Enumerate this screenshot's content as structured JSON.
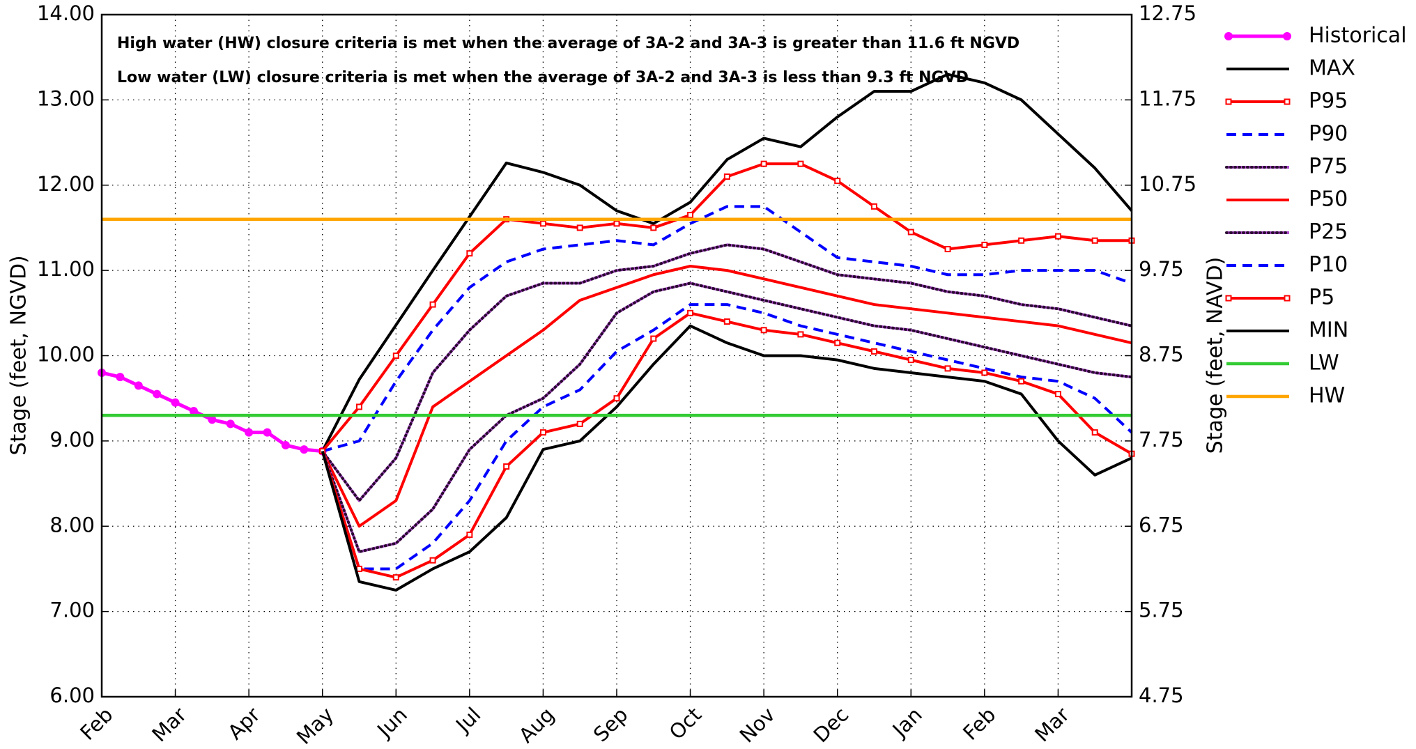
{
  "chart_data": {
    "type": "line",
    "annotations": [
      "High water (HW) closure criteria is met when the average of 3A-2 and 3A-3 is greater than 11.6 ft NGVD",
      "Low water (LW) closure criteria is met when the average of 3A-2 and 3A-3 is less than 9.3 ft NGVD"
    ],
    "ylabel": "Stage (feet, NGVD)",
    "y2label": "Stage (feet, NAVD)",
    "xlim": [
      0,
      14
    ],
    "xticks": [
      {
        "value": 0,
        "label": "Feb"
      },
      {
        "value": 1,
        "label": "Mar"
      },
      {
        "value": 2,
        "label": "Apr"
      },
      {
        "value": 3,
        "label": "May"
      },
      {
        "value": 4,
        "label": "Jun"
      },
      {
        "value": 5,
        "label": "Jul"
      },
      {
        "value": 6,
        "label": "Aug"
      },
      {
        "value": 7,
        "label": "Sep"
      },
      {
        "value": 8,
        "label": "Oct"
      },
      {
        "value": 9,
        "label": "Nov"
      },
      {
        "value": 10,
        "label": "Dec"
      },
      {
        "value": 11,
        "label": "Jan"
      },
      {
        "value": 12,
        "label": "Feb"
      },
      {
        "value": 13,
        "label": "Mar"
      }
    ],
    "ylim": [
      6,
      14
    ],
    "yticks": [
      {
        "value": 6,
        "label": "6.00"
      },
      {
        "value": 7,
        "label": "7.00"
      },
      {
        "value": 8,
        "label": "8.00"
      },
      {
        "value": 9,
        "label": "9.00"
      },
      {
        "value": 10,
        "label": "10.00"
      },
      {
        "value": 11,
        "label": "11.00"
      },
      {
        "value": 12,
        "label": "12.00"
      },
      {
        "value": 13,
        "label": "13.00"
      },
      {
        "value": 14,
        "label": "14.00"
      }
    ],
    "y2lim": [
      4.75,
      12.75
    ],
    "y2ticks": [
      4.75,
      5.75,
      6.75,
      7.75,
      8.75,
      9.75,
      10.75,
      11.75,
      12.75
    ],
    "grid": true,
    "legend": "outside right",
    "series": [
      {
        "name": "Historical",
        "color": "#ff00ff",
        "style": "dots",
        "x": [
          0,
          0.25,
          0.5,
          0.75,
          1,
          1.25,
          1.5,
          1.75,
          2,
          2.25,
          2.5,
          2.75,
          3
        ],
        "values": [
          9.8,
          9.75,
          9.65,
          9.55,
          9.45,
          9.35,
          9.25,
          9.2,
          9.1,
          9.1,
          8.95,
          8.9,
          8.88
        ]
      },
      {
        "name": "MAX",
        "color": "#000000",
        "style": "solid",
        "x": [
          3,
          3.5,
          4,
          4.5,
          5,
          5.5,
          6,
          6.5,
          7,
          7.5,
          8,
          8.5,
          9,
          9.5,
          10,
          10.5,
          11,
          11.5,
          12,
          12.5,
          13,
          13.5,
          14
        ],
        "values": [
          8.88,
          9.72,
          10.36,
          11.0,
          11.63,
          12.26,
          12.15,
          12.0,
          11.7,
          11.55,
          11.8,
          12.3,
          12.55,
          12.45,
          12.8,
          13.1,
          13.1,
          13.3,
          13.2,
          13.0,
          12.6,
          12.2,
          11.7
        ]
      },
      {
        "name": "P95",
        "color": "#ff0000",
        "style": "squares",
        "x": [
          3,
          3.5,
          4,
          4.5,
          5,
          5.5,
          6,
          6.5,
          7,
          7.5,
          8,
          8.5,
          9,
          9.5,
          10,
          10.5,
          11,
          11.5,
          12,
          12.5,
          13,
          13.5,
          14
        ],
        "values": [
          8.88,
          9.4,
          10.0,
          10.6,
          11.2,
          11.6,
          11.55,
          11.5,
          11.55,
          11.5,
          11.65,
          12.1,
          12.25,
          12.25,
          12.05,
          11.75,
          11.45,
          11.25,
          11.3,
          11.35,
          11.4,
          11.35,
          11.35
        ]
      },
      {
        "name": "P90",
        "color": "#0000ff",
        "style": "dashed",
        "x": [
          3,
          3.5,
          4,
          4.5,
          5,
          5.5,
          6,
          6.5,
          7,
          7.5,
          8,
          8.5,
          9,
          9.5,
          10,
          10.5,
          11,
          11.5,
          12,
          12.5,
          13,
          13.5,
          14
        ],
        "values": [
          8.88,
          9.0,
          9.7,
          10.3,
          10.8,
          11.1,
          11.25,
          11.3,
          11.35,
          11.3,
          11.55,
          11.75,
          11.75,
          11.45,
          11.15,
          11.1,
          11.05,
          10.95,
          10.95,
          11.0,
          11.0,
          11.0,
          10.85
        ]
      },
      {
        "name": "P75",
        "color": "#b04fd0",
        "style": "dotted",
        "x": [
          3,
          3.5,
          4,
          4.5,
          5,
          5.5,
          6,
          6.5,
          7,
          7.5,
          8,
          8.5,
          9,
          9.5,
          10,
          10.5,
          11,
          11.5,
          12,
          12.5,
          13,
          13.5,
          14
        ],
        "values": [
          8.88,
          8.3,
          8.8,
          9.8,
          10.3,
          10.7,
          10.85,
          10.85,
          11.0,
          11.05,
          11.2,
          11.3,
          11.25,
          11.1,
          10.95,
          10.9,
          10.85,
          10.75,
          10.7,
          10.6,
          10.55,
          10.45,
          10.35
        ]
      },
      {
        "name": "P50",
        "color": "#ff0000",
        "style": "solid",
        "x": [
          3,
          3.5,
          4,
          4.5,
          5,
          5.5,
          6,
          6.5,
          7,
          7.5,
          8,
          8.5,
          9,
          9.5,
          10,
          10.5,
          11,
          11.5,
          12,
          12.5,
          13,
          13.5,
          14
        ],
        "values": [
          8.88,
          8.0,
          8.3,
          9.4,
          9.7,
          10.0,
          10.3,
          10.65,
          10.8,
          10.95,
          11.05,
          11.0,
          10.9,
          10.8,
          10.7,
          10.6,
          10.55,
          10.5,
          10.45,
          10.4,
          10.35,
          10.25,
          10.15
        ]
      },
      {
        "name": "P25",
        "color": "#b04fd0",
        "style": "dotted",
        "x": [
          3,
          3.5,
          4,
          4.5,
          5,
          5.5,
          6,
          6.5,
          7,
          7.5,
          8,
          8.5,
          9,
          9.5,
          10,
          10.5,
          11,
          11.5,
          12,
          12.5,
          13,
          13.5,
          14
        ],
        "values": [
          8.88,
          7.7,
          7.8,
          8.2,
          8.9,
          9.3,
          9.5,
          9.9,
          10.5,
          10.75,
          10.85,
          10.75,
          10.65,
          10.55,
          10.45,
          10.35,
          10.3,
          10.2,
          10.1,
          10.0,
          9.9,
          9.8,
          9.75
        ]
      },
      {
        "name": "P10",
        "color": "#0000ff",
        "style": "dashed",
        "x": [
          3,
          3.5,
          4,
          4.5,
          5,
          5.5,
          6,
          6.5,
          7,
          7.5,
          8,
          8.5,
          9,
          9.5,
          10,
          10.5,
          11,
          11.5,
          12,
          12.5,
          13,
          13.5,
          14
        ],
        "values": [
          8.88,
          7.5,
          7.5,
          7.8,
          8.3,
          9.0,
          9.4,
          9.6,
          10.05,
          10.3,
          10.6,
          10.6,
          10.5,
          10.35,
          10.25,
          10.15,
          10.05,
          9.95,
          9.85,
          9.75,
          9.7,
          9.5,
          9.1
        ]
      },
      {
        "name": "P5",
        "color": "#ff0000",
        "style": "squares",
        "x": [
          3,
          3.5,
          4,
          4.5,
          5,
          5.5,
          6,
          6.5,
          7,
          7.5,
          8,
          8.5,
          9,
          9.5,
          10,
          10.5,
          11,
          11.5,
          12,
          12.5,
          13,
          13.5,
          14
        ],
        "values": [
          8.88,
          7.5,
          7.4,
          7.6,
          7.9,
          8.7,
          9.1,
          9.2,
          9.5,
          10.2,
          10.5,
          10.4,
          10.3,
          10.25,
          10.15,
          10.05,
          9.95,
          9.85,
          9.8,
          9.7,
          9.55,
          9.1,
          8.85
        ]
      },
      {
        "name": "MIN",
        "color": "#000000",
        "style": "solid",
        "x": [
          3,
          3.5,
          4,
          4.5,
          5,
          5.5,
          6,
          6.5,
          7,
          7.5,
          8,
          8.5,
          9,
          9.5,
          10,
          10.5,
          11,
          11.5,
          12,
          12.5,
          13,
          13.5,
          14
        ],
        "values": [
          8.88,
          7.35,
          7.25,
          7.5,
          7.7,
          8.1,
          8.9,
          9.0,
          9.4,
          9.9,
          10.35,
          10.15,
          10.0,
          10.0,
          9.95,
          9.85,
          9.8,
          9.75,
          9.7,
          9.55,
          9.0,
          8.6,
          8.8
        ]
      },
      {
        "name": "LW",
        "color": "#33cc33",
        "style": "hline",
        "value": 9.3
      },
      {
        "name": "HW",
        "color": "#ffa500",
        "style": "hline",
        "value": 11.6
      }
    ]
  }
}
